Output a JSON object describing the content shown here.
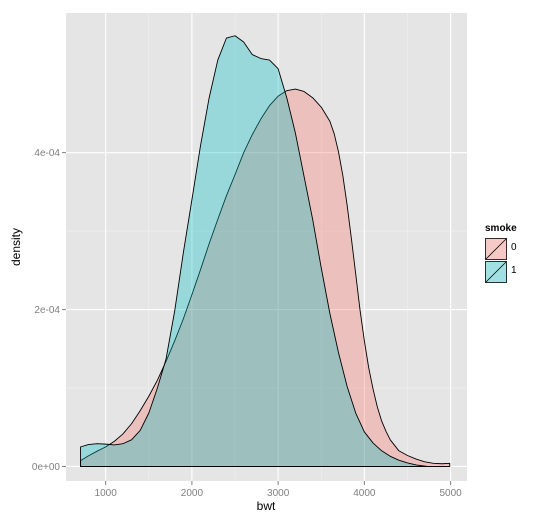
{
  "chart_data": {
    "type": "area",
    "title": "",
    "xlabel": "bwt",
    "ylabel": "density",
    "xlim": [
      540,
      5190
    ],
    "ylim": [
      -1.85e-05,
      0.000578
    ],
    "x_ticks": [
      1000,
      2000,
      3000,
      4000,
      5000
    ],
    "x_tick_labels": [
      "1000",
      "2000",
      "3000",
      "4000",
      "5000"
    ],
    "y_ticks": [
      0,
      0.0002,
      0.0004
    ],
    "y_tick_labels": [
      "0e+00",
      "2e-04",
      "4e-04"
    ],
    "grid": true,
    "legend": {
      "title": "smoke",
      "placement": "right",
      "entries": [
        "0",
        "1"
      ]
    },
    "series": [
      {
        "name": "0",
        "color": "#F8766D",
        "points": [
          [
            709,
            7.5e-06
          ],
          [
            800,
            1.35e-05
          ],
          [
            900,
            1.95e-05
          ],
          [
            1000,
            2.5e-05
          ],
          [
            1100,
            3.2e-05
          ],
          [
            1200,
            4.15e-05
          ],
          [
            1300,
            5.45e-05
          ],
          [
            1400,
            7.1e-05
          ],
          [
            1500,
            8.95e-05
          ],
          [
            1600,
            0.00011
          ],
          [
            1700,
            0.000134
          ],
          [
            1800,
            0.00016
          ],
          [
            1900,
            0.000188
          ],
          [
            2000,
            0.000219
          ],
          [
            2100,
            0.000251
          ],
          [
            2200,
            0.000284
          ],
          [
            2300,
            0.000315
          ],
          [
            2400,
            0.000345
          ],
          [
            2500,
            0.000372
          ],
          [
            2600,
            0.0004
          ],
          [
            2700,
            0.000423
          ],
          [
            2800,
            0.000443
          ],
          [
            2900,
            0.00046
          ],
          [
            3000,
            0.000472
          ],
          [
            3100,
            0.000479
          ],
          [
            3200,
            0.000481
          ],
          [
            3300,
            0.000478
          ],
          [
            3400,
            0.00047
          ],
          [
            3500,
            0.000458
          ],
          [
            3600,
            0.00044
          ],
          [
            3650,
            0.000424
          ],
          [
            3700,
            0.000401
          ],
          [
            3750,
            0.000371
          ],
          [
            3800,
            0.000333
          ],
          [
            3850,
            0.00029
          ],
          [
            3900,
            0.000245
          ],
          [
            3950,
            0.000199
          ],
          [
            4000,
            0.00016
          ],
          [
            4050,
            0.000126
          ],
          [
            4100,
            9.9e-05
          ],
          [
            4150,
            7.6e-05
          ],
          [
            4200,
            5.8e-05
          ],
          [
            4250,
            4.5e-05
          ],
          [
            4300,
            3.4e-05
          ],
          [
            4400,
            2e-05
          ],
          [
            4500,
            1.4e-05
          ],
          [
            4600,
            9.5e-06
          ],
          [
            4700,
            6e-06
          ],
          [
            4800,
            4e-06
          ],
          [
            4900,
            3.5e-06
          ],
          [
            4990,
            4e-06
          ]
        ]
      },
      {
        "name": "1",
        "color": "#00BFC4",
        "points": [
          [
            709,
            2.5e-05
          ],
          [
            800,
            2.8e-05
          ],
          [
            900,
            2.9e-05
          ],
          [
            1000,
            2.85e-05
          ],
          [
            1100,
            2.75e-05
          ],
          [
            1200,
            2.9e-05
          ],
          [
            1300,
            3.4e-05
          ],
          [
            1400,
            4.6e-05
          ],
          [
            1500,
            6.8e-05
          ],
          [
            1600,
            0.0001
          ],
          [
            1700,
            0.000137
          ],
          [
            1800,
            0.000198
          ],
          [
            1900,
            0.000272
          ],
          [
            2000,
            0.00034
          ],
          [
            2100,
            0.000409
          ],
          [
            2200,
            0.00047
          ],
          [
            2300,
            0.000518
          ],
          [
            2400,
            0.000546
          ],
          [
            2500,
            0.000549
          ],
          [
            2600,
            0.000541
          ],
          [
            2700,
            0.000525
          ],
          [
            2800,
            0.00052
          ],
          [
            2900,
            0.000518
          ],
          [
            3000,
            0.000507
          ],
          [
            3100,
            0.00047
          ],
          [
            3200,
            0.000425
          ],
          [
            3300,
            0.00037
          ],
          [
            3400,
            0.000315
          ],
          [
            3500,
            0.000253
          ],
          [
            3600,
            0.000195
          ],
          [
            3700,
            0.000145
          ],
          [
            3800,
            0.000102
          ],
          [
            3900,
            6.8e-05
          ],
          [
            4000,
            4.4e-05
          ],
          [
            4100,
            3e-05
          ],
          [
            4200,
            2e-05
          ],
          [
            4300,
            1.3e-05
          ],
          [
            4400,
            8e-06
          ],
          [
            4500,
            4.5e-06
          ],
          [
            4600,
            2e-06
          ],
          [
            4700,
            5e-07
          ],
          [
            4730,
            0.0
          ]
        ]
      }
    ]
  },
  "style": {
    "panel_bg": "#E5E5E5",
    "grid_major": "#FFFFFF",
    "grid_minor": "#F2F2F2",
    "fill_opacity": 0.33,
    "outline": "#000000"
  }
}
